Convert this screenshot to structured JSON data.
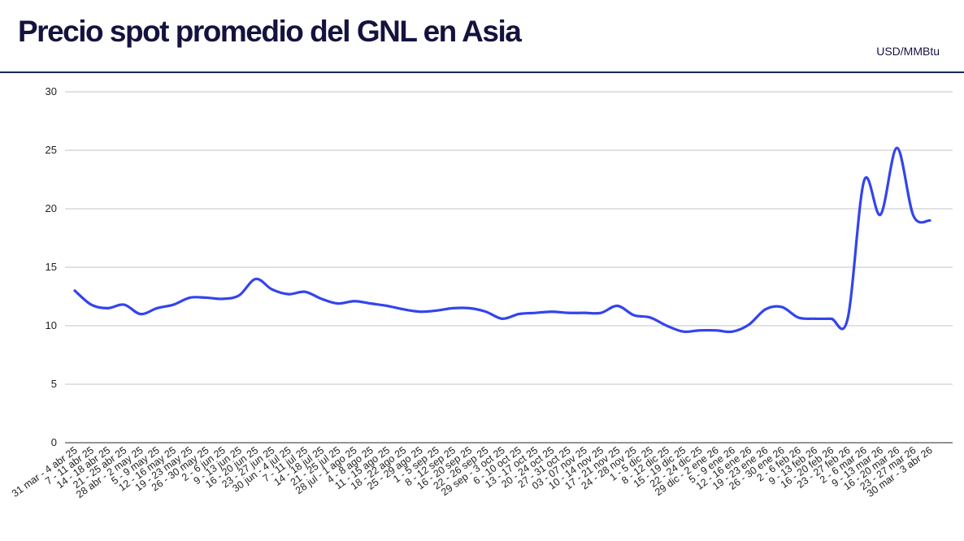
{
  "header": {
    "title": "Precio spot promedio del GNL en Asia",
    "unit": "USD/MMBtu"
  },
  "chart_data": {
    "type": "line",
    "title": "Precio spot promedio del GNL en Asia",
    "ylabel": "USD/MMBtu",
    "ylim": [
      0,
      30
    ],
    "yticks": [
      0,
      5,
      10,
      15,
      20,
      25,
      30
    ],
    "grid": true,
    "legend": "none",
    "line_color": "#3344ee",
    "categories": [
      "31 mar - 4 abr 25",
      "7 - 11 abr 25",
      "14 - 18 abr 25",
      "21 - 25 abr 25",
      "28 abr - 2 may 25",
      "5 - 9 may 25",
      "12 - 16 may 25",
      "19 - 23 may 25",
      "26 - 30 may 25",
      "2 - 6 jun 25",
      "9 - 13 jun 25",
      "16 - 20 jun 25",
      "23 - 27 jun 25",
      "30 jun - 4 jul 25",
      "7 - 11 jul 25",
      "14 - 18 jul 25",
      "21 - 25 jul 25",
      "28 jul - 1 ago 25",
      "4 - 8 ago 25",
      "11 - 15 ago 25",
      "18 - 22 ago 25",
      "25 - 29 ago 25",
      "1 - 5 sep 25",
      "8 - 12 sep 25",
      "16 - 20 sep 25",
      "22 - 26 sep 25",
      "29 sep - 3 oct 25",
      "6 - 10 oct 25",
      "13 - 17 oct 25",
      "20 - 24 oct 25",
      "27 - 31 oct 25",
      "03 - 07 nov 25",
      "10 - 14 nov 25",
      "17 - 21 nov 25",
      "24 - 28 nov 25",
      "1 - 5 dic 25",
      "8 - 12 dic 25",
      "15 - 19 dic 25",
      "22 - 24 dic 25",
      "29 dic - 2 ene 26",
      "5 - 9 ene 26",
      "12 - 16 ene 26",
      "19 - 23 ene 26",
      "26 - 30 ene 26",
      "2 - 6 feb 26",
      "9 - 13 feb 26",
      "16 - 20 feb 26",
      "23 - 27 feb 26",
      "2 - 6 mar 26",
      "9 - 13 mar 26",
      "16 - 20 mar 26",
      "23 - 27 mar 26",
      "30 mar - 3 abr 26"
    ],
    "series": [
      {
        "values": [
          13.0,
          11.8,
          11.5,
          11.8,
          11.0,
          11.5,
          11.8,
          12.4,
          12.4,
          12.3,
          12.6,
          14.0,
          13.1,
          12.7,
          12.9,
          12.3,
          11.9,
          12.1,
          11.9,
          11.7,
          11.4,
          11.2,
          11.3,
          11.5,
          11.5,
          11.2,
          10.6,
          11.0,
          11.1,
          11.2,
          11.1,
          11.1,
          11.1,
          11.7,
          10.9,
          10.7,
          10.0,
          9.5,
          9.6,
          9.6,
          9.5,
          10.1,
          11.4,
          11.6,
          10.7,
          10.6,
          10.6,
          10.6,
          22.4,
          19.5,
          25.2,
          19.4,
          19.0
        ]
      }
    ]
  }
}
